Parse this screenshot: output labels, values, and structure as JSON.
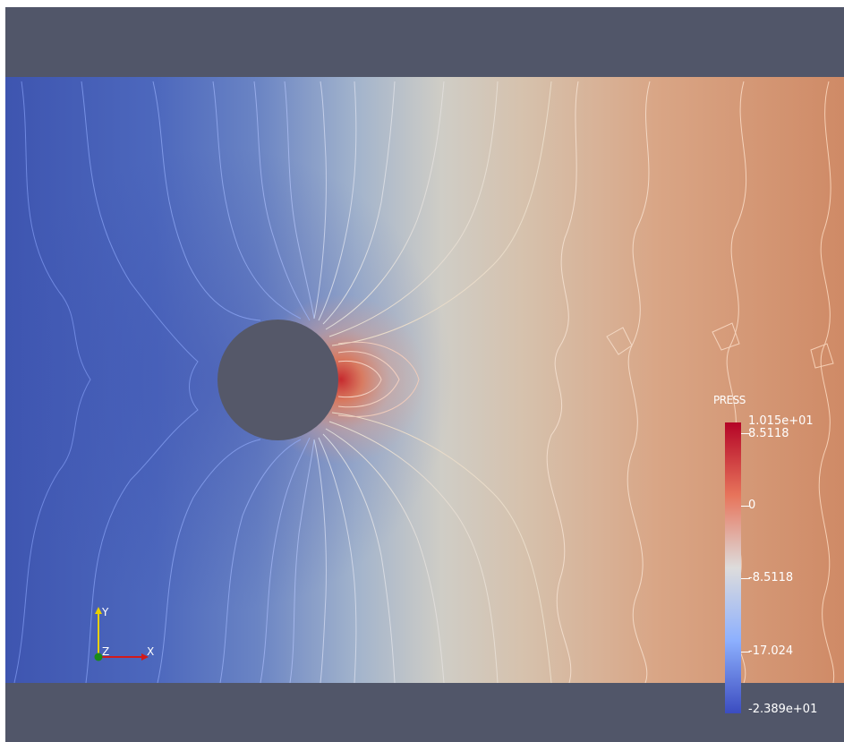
{
  "colorbar": {
    "title": "PRESS",
    "max_label": "1.015e+01",
    "labels": [
      "8.5118",
      "0",
      "-8.5118",
      "-17.024"
    ],
    "min_label": "-2.389e+01",
    "colors": [
      "#b40426",
      "#e7745b",
      "#dddcdc",
      "#8db0fe",
      "#3b4cc0"
    ]
  },
  "axes": {
    "y_label": "Y",
    "z_label": "Z",
    "x_label": "X",
    "y_color": "#e8d000",
    "x_color": "#d21a1a",
    "z_color": "#1a8a1a"
  },
  "background_color": "#515669"
}
